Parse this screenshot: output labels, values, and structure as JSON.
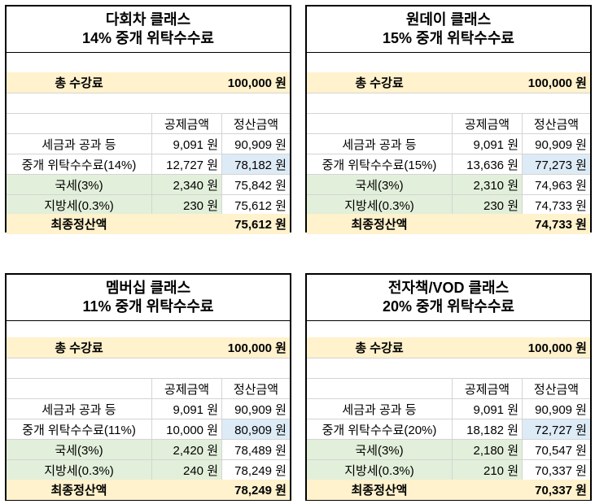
{
  "cards": [
    {
      "title_line1": "다회차 클래스",
      "title_line2": "14% 중개 위탁수수료",
      "total_label": "총 수강료",
      "total_value": "100,000 원",
      "col_deduct": "공제금액",
      "col_settle": "정산금액",
      "rows": [
        {
          "label": "세금과 공과 등",
          "deduct": "9,091 원",
          "settle": "90,909 원"
        },
        {
          "label": "중개 위탁수수료(14%)",
          "deduct": "12,727 원",
          "settle": "78,182 원"
        },
        {
          "label": "국세(3%)",
          "deduct": "2,340 원",
          "settle": "75,842 원"
        },
        {
          "label": "지방세(0.3%)",
          "deduct": "230 원",
          "settle": "75,612 원"
        }
      ],
      "final_label": "최종정산액",
      "final_value": "75,612 원"
    },
    {
      "title_line1": "원데이 클래스",
      "title_line2": "15% 중개 위탁수수료",
      "total_label": "총 수강료",
      "total_value": "100,000 원",
      "col_deduct": "공제금액",
      "col_settle": "정산금액",
      "rows": [
        {
          "label": "세금과 공과 등",
          "deduct": "9,091 원",
          "settle": "90,909 원"
        },
        {
          "label": "중개 위탁수수료(15%)",
          "deduct": "13,636 원",
          "settle": "77,273 원"
        },
        {
          "label": "국세(3%)",
          "deduct": "2,310 원",
          "settle": "74,963 원"
        },
        {
          "label": "지방세(0.3%)",
          "deduct": "230 원",
          "settle": "74,733 원"
        }
      ],
      "final_label": "최종정산액",
      "final_value": "74,733 원"
    },
    {
      "title_line1": "멤버십 클래스",
      "title_line2": "11% 중개 위탁수수료",
      "total_label": "총 수강료",
      "total_value": "100,000 원",
      "col_deduct": "공제금액",
      "col_settle": "정산금액",
      "rows": [
        {
          "label": "세금과 공과 등",
          "deduct": "9,091 원",
          "settle": "90,909 원"
        },
        {
          "label": "중개 위탁수수료(11%)",
          "deduct": "10,000 원",
          "settle": "80,909 원"
        },
        {
          "label": "국세(3%)",
          "deduct": "2,420 원",
          "settle": "78,489 원"
        },
        {
          "label": "지방세(0.3%)",
          "deduct": "240 원",
          "settle": "78,249 원"
        }
      ],
      "final_label": "최종정산액",
      "final_value": "78,249 원"
    },
    {
      "title_line1": "전자책/VOD 클래스",
      "title_line2": "20% 중개 위탁수수료",
      "total_label": "총 수강료",
      "total_value": "100,000 원",
      "col_deduct": "공제금액",
      "col_settle": "정산금액",
      "rows": [
        {
          "label": "세금과 공과 등",
          "deduct": "9,091 원",
          "settle": "90,909 원"
        },
        {
          "label": "중개 위탁수수료(20%)",
          "deduct": "18,182 원",
          "settle": "72,727 원"
        },
        {
          "label": "국세(3%)",
          "deduct": "2,180 원",
          "settle": "70,547 원"
        },
        {
          "label": "지방세(0.3%)",
          "deduct": "210 원",
          "settle": "70,337 원"
        }
      ],
      "final_label": "최종정산액",
      "final_value": "70,337 원"
    }
  ]
}
